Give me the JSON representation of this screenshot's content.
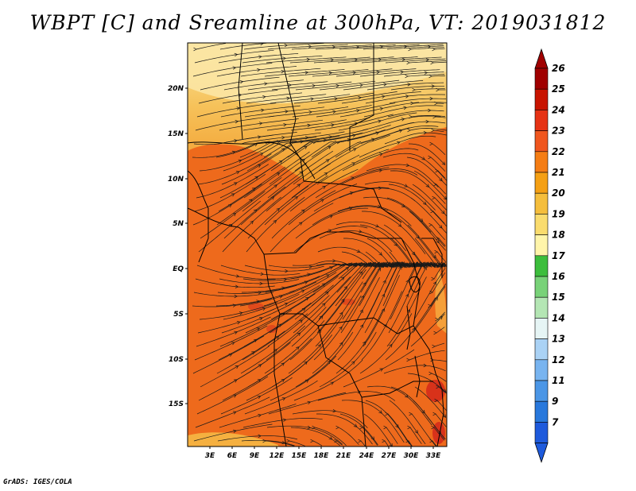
{
  "title": "WBPT [C] and Sreamline at 300hPa, VT: 2019031812",
  "credit": "GrADS: IGES/COLA",
  "map": {
    "lat_labels": [
      "20N",
      "15N",
      "10N",
      "5N",
      "EQ",
      "5S",
      "10S",
      "15S"
    ],
    "lon_labels": [
      "3E",
      "6E",
      "9E",
      "12E",
      "15E",
      "18E",
      "21E",
      "24E",
      "27E",
      "30E",
      "33E"
    ]
  },
  "colorbar": {
    "labels": [
      "26",
      "25",
      "24",
      "23",
      "22",
      "21",
      "20",
      "19",
      "18",
      "17",
      "16",
      "15",
      "14",
      "13",
      "12",
      "11",
      "9",
      "7"
    ],
    "colors": [
      "#a00000",
      "#c81400",
      "#e63214",
      "#f0561e",
      "#f57d14",
      "#f5a014",
      "#f5be3c",
      "#fadc6e",
      "#fff5aa",
      "#3cbe3c",
      "#78d278",
      "#b4e6b4",
      "#e6f5f5",
      "#aad2f5",
      "#78b4f0",
      "#4b96e6",
      "#2878dc",
      "#1e5adc"
    ]
  }
}
